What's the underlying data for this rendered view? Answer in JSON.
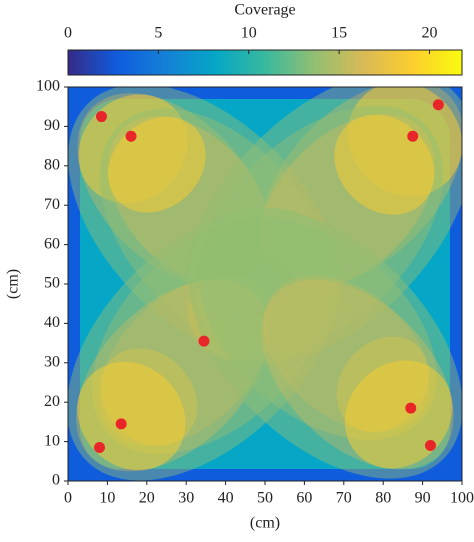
{
  "chart_data": {
    "type": "scatter",
    "colorbar_title": "Coverage",
    "clim": [
      0,
      21.8
    ],
    "cticks": [
      0,
      5,
      10,
      15,
      20
    ],
    "colormap": [
      "#352a87",
      "#0f5cdd",
      "#1481d6",
      "#06a7c6",
      "#38b99e",
      "#92bf73",
      "#d9ba56",
      "#fcce2e",
      "#f9fb0e"
    ],
    "x": [
      8.5,
      16,
      94,
      87.5,
      34.5,
      13.5,
      8,
      87,
      92
    ],
    "y": [
      92.5,
      87.5,
      95.5,
      87.5,
      35.5,
      14.5,
      8.5,
      18.5,
      9
    ],
    "color": "#e8262a",
    "xlim": [
      0,
      100
    ],
    "ylim": [
      0,
      100
    ],
    "xticks": [
      0,
      10,
      20,
      30,
      40,
      50,
      60,
      70,
      80,
      90,
      100
    ],
    "yticks": [
      0,
      10,
      20,
      30,
      40,
      50,
      60,
      70,
      80,
      90,
      100
    ],
    "xlabel": "(cm)",
    "ylabel": "(cm)"
  }
}
